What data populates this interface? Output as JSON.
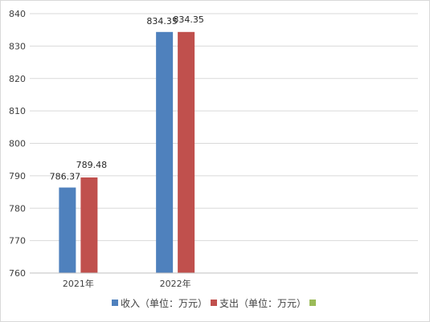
{
  "chart_data": {
    "type": "bar",
    "categories": [
      "2021年",
      "2022年",
      ""
    ],
    "series": [
      {
        "name": "收入（单位：万元）",
        "color": "#4f81bd",
        "values": [
          786.37,
          834.35,
          null
        ]
      },
      {
        "name": "支出（单位：万元）",
        "color": "#c0504d",
        "values": [
          789.48,
          834.35,
          null
        ]
      },
      {
        "name": "",
        "color": "#9bbb59",
        "values": [
          null,
          null,
          null
        ]
      }
    ],
    "data_labels": [
      [
        "786.37",
        "834.35",
        ""
      ],
      [
        "789.48",
        "834.35",
        ""
      ]
    ],
    "y_ticks": [
      760,
      770,
      780,
      790,
      800,
      810,
      820,
      830,
      840
    ],
    "ylim": [
      760,
      840
    ],
    "grid": true,
    "legend": "bottom",
    "title": "",
    "xlabel": "",
    "ylabel": ""
  }
}
